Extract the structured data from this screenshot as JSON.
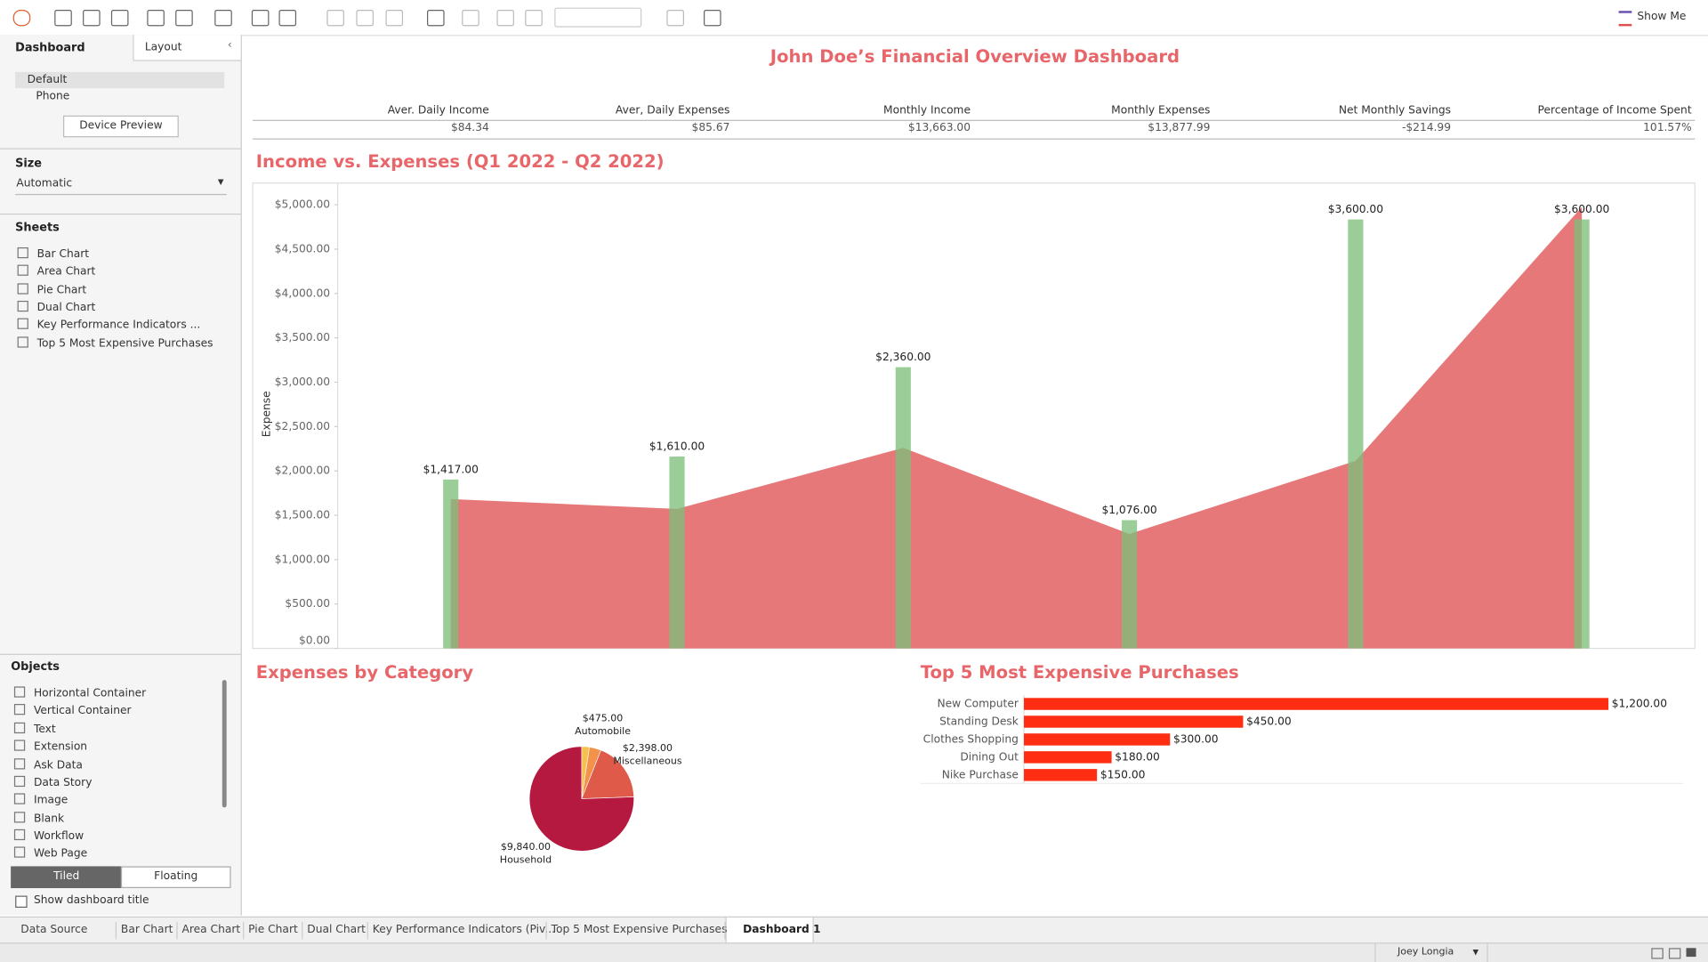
{
  "toolbar": {
    "show_me": "Show Me"
  },
  "sidebar": {
    "tabs": [
      "Dashboard",
      "Layout"
    ],
    "devices": [
      "Default",
      "Phone"
    ],
    "device_preview": "Device Preview",
    "size_heading": "Size",
    "size_value": "Automatic",
    "sheets_heading": "Sheets",
    "sheets": [
      "Bar Chart",
      "Area Chart",
      "Pie Chart",
      "Dual Chart",
      "Key Performance Indicators ...",
      "Top 5 Most Expensive Purchases"
    ],
    "objects_heading": "Objects",
    "objects": [
      "Horizontal Container",
      "Vertical Container",
      "Text",
      "Extension",
      "Ask Data",
      "Data Story",
      "Image",
      "Blank",
      "Workflow",
      "Web Page"
    ],
    "layout_modes": [
      "Tiled",
      "Floating"
    ],
    "show_title": "Show dashboard title"
  },
  "dashboard": {
    "title": "John Doe’s Financial Overview Dashboard",
    "kpi": {
      "headers": [
        "Aver. Daily Income",
        "Aver, Daily Expenses",
        "Monthly Income",
        "Monthly Expenses",
        "Net Monthly Savings",
        "Percentage of Income Spent"
      ],
      "values": [
        "$84.34",
        "$85.67",
        "$13,663.00",
        "$13,877.99",
        "-$214.99",
        "101.57%"
      ]
    }
  },
  "chart_data": [
    {
      "type": "combo",
      "title": "Income vs. Expenses (Q1 2022 - Q2 2022)",
      "y_label": "Expense",
      "categories": [
        null,
        null,
        null,
        null,
        null,
        null
      ],
      "ylim": [
        0,
        5220
      ],
      "y2lim": [
        0,
        3887
      ],
      "yticks": [
        {
          "value": 0,
          "label": "$0.00"
        },
        {
          "value": 500,
          "label": "$500.00"
        },
        {
          "value": 1000,
          "label": "$1,000.00"
        },
        {
          "value": 1500,
          "label": "$1,500.00"
        },
        {
          "value": 2000,
          "label": "$2,000.00"
        },
        {
          "value": 2500,
          "label": "$2,500.00"
        },
        {
          "value": 3000,
          "label": "$3,000.00"
        },
        {
          "value": 3500,
          "label": "$3,500.00"
        },
        {
          "value": 4000,
          "label": "$4,000.00"
        },
        {
          "value": 4500,
          "label": "$4,500.00"
        },
        {
          "value": 5000,
          "label": "$5,000.00"
        }
      ],
      "series": [
        {
          "type": "area",
          "color": "#e46c6e",
          "values": [
            1683,
            1572,
            2260,
            1290,
            2113,
            4975
          ]
        },
        {
          "type": "bar",
          "color": "#7fbf7b",
          "axis": "y2",
          "values": [
            1417,
            1610,
            2360,
            1076,
            3600,
            3600
          ],
          "value_labels": [
            "$1,417.00",
            "$1,610.00",
            "$2,360.00",
            "$1,076.00",
            "$3,600.00",
            "$3,600.00"
          ]
        }
      ]
    },
    {
      "type": "pie",
      "title": "Expenses by Category",
      "categories": [
        null,
        "Automobile",
        "Miscellaneous",
        "Household"
      ],
      "values": [
        310,
        475,
        2398,
        9840
      ],
      "value_labels": [
        null,
        "$475.00",
        "$2,398.00",
        "$9,840.00"
      ],
      "colors": [
        "#f5c04e",
        "#f3924a",
        "#df5a48",
        "#b5193f"
      ]
    },
    {
      "type": "hbar",
      "title": "Top 5 Most Expensive Purchases",
      "categories": [
        "New Computer",
        "Standing Desk",
        "Clothes Shopping",
        "Dining Out",
        "Nike Purchase"
      ],
      "values": [
        1200,
        450,
        300,
        180,
        150
      ],
      "value_labels": [
        "$1,200.00",
        "$450.00",
        "$300.00",
        "$180.00",
        "$150.00"
      ],
      "color": "#ff2d12",
      "xlim": [
        0,
        1353
      ]
    }
  ],
  "tabs": [
    "Data Source",
    "Bar Chart",
    "Area Chart",
    "Pie Chart",
    "Dual Chart",
    "Key Performance Indicators (Piv...",
    "Top 5 Most Expensive Purchases",
    "Dashboard 1"
  ],
  "status": {
    "user": "Joey Longia"
  }
}
